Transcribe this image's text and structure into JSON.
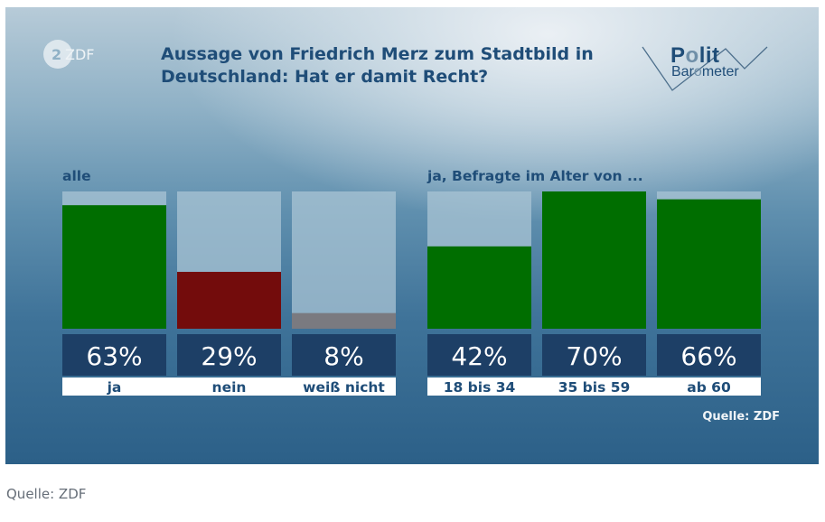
{
  "header": {
    "broadcaster_logo": "ZDF",
    "title_line1": "Aussage von Friedrich Merz zum Stadtbild in",
    "title_line2": "Deutschland: Hat er damit Recht?",
    "brand_line1_a": "P",
    "brand_line1_o": "o",
    "brand_line1_b": "lit",
    "brand_line2_a": "Bar",
    "brand_line2_o": "o",
    "brand_line2_b": "meter"
  },
  "colors": {
    "yes": "#006e00",
    "no": "#730c0c",
    "dont_know": "#7a7a80",
    "track": "#a9c4d4",
    "value_box": "#1d3f66",
    "label_strip": "#ffffff",
    "text": "#1f4d78"
  },
  "chart_data": {
    "type": "bar",
    "title": "Aussage von Friedrich Merz zum Stadtbild in Deutschland: Hat er damit Recht?",
    "ylim": [
      0,
      70
    ],
    "value_unit": "%",
    "groups": [
      {
        "label": "alle",
        "categories": [
          "ja",
          "nein",
          "weiß nicht"
        ],
        "values": [
          63,
          29,
          8
        ],
        "colors": [
          "yes",
          "no",
          "dont_know"
        ]
      },
      {
        "label": "ja, Befragte im Alter von ...",
        "categories": [
          "18 bis 34",
          "35 bis 59",
          "ab 60"
        ],
        "values": [
          42,
          70,
          66
        ],
        "colors": [
          "yes",
          "yes",
          "yes"
        ]
      }
    ],
    "source_note": "Quelle: ZDF"
  },
  "footer": {
    "source_in_graphic": "Quelle: ZDF",
    "caption": "Quelle: ZDF"
  }
}
